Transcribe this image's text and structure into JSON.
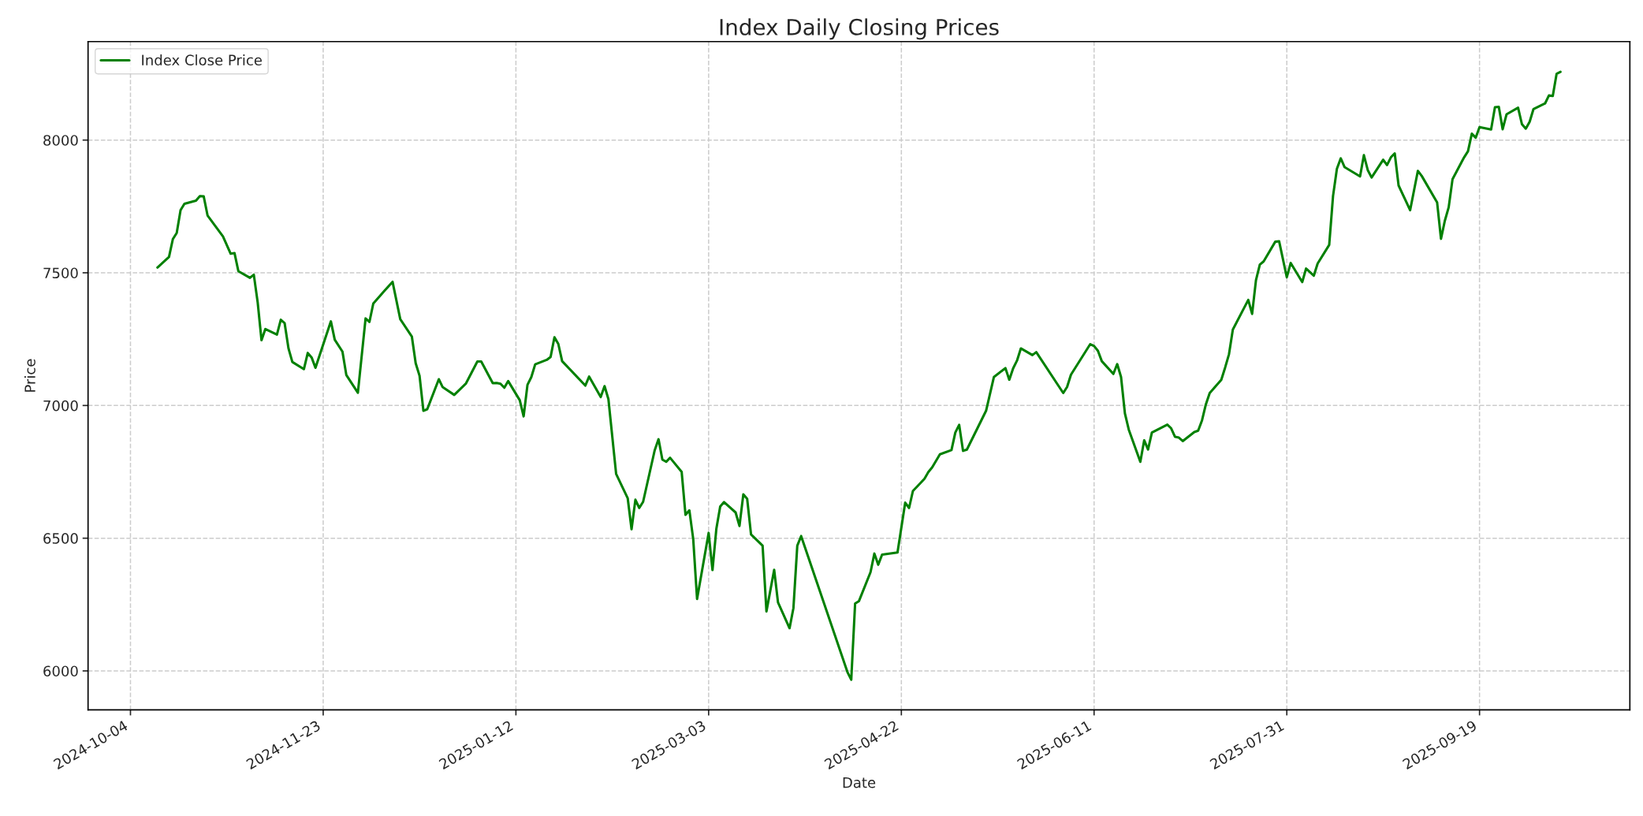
{
  "chart_data": {
    "type": "line",
    "title": "Index Daily Closing Prices",
    "xlabel": "Date",
    "ylabel": "Price",
    "xlim": [
      "2024-09-23",
      "2025-10-28"
    ],
    "ylim": [
      5853,
      8371
    ],
    "xticks": [
      "2024-10-04",
      "2024-11-23",
      "2025-01-12",
      "2025-03-03",
      "2025-04-22",
      "2025-06-11",
      "2025-07-31",
      "2025-09-19"
    ],
    "yticks": [
      6000,
      6500,
      7000,
      7500,
      8000
    ],
    "grid": true,
    "legend": "top left",
    "line_style": "solid",
    "marker": "none",
    "x": [
      "2024-10-11",
      "2024-10-14",
      "2024-10-15",
      "2024-10-16",
      "2024-10-17",
      "2024-10-18",
      "2024-10-21",
      "2024-10-22",
      "2024-10-23",
      "2024-10-24",
      "2024-10-28",
      "2024-10-30",
      "2024-10-31",
      "2024-11-01",
      "2024-11-04",
      "2024-11-05",
      "2024-11-06",
      "2024-11-07",
      "2024-11-08",
      "2024-11-11",
      "2024-11-12",
      "2024-11-13",
      "2024-11-14",
      "2024-11-15",
      "2024-11-18",
      "2024-11-19",
      "2024-11-20",
      "2024-11-21",
      "2024-11-25",
      "2024-11-26",
      "2024-11-28",
      "2024-11-29",
      "2024-12-02",
      "2024-12-04",
      "2024-12-05",
      "2024-12-06",
      "2024-12-09",
      "2024-12-11",
      "2024-12-13",
      "2024-12-16",
      "2024-12-17",
      "2024-12-18",
      "2024-12-19",
      "2024-12-20",
      "2024-12-23",
      "2024-12-24",
      "2024-12-27",
      "2024-12-30",
      "2025-01-02",
      "2025-01-03",
      "2025-01-06",
      "2025-01-07",
      "2025-01-08",
      "2025-01-09",
      "2025-01-10",
      "2025-01-13",
      "2025-01-14",
      "2025-01-15",
      "2025-01-16",
      "2025-01-17",
      "2025-01-20",
      "2025-01-21",
      "2025-01-22",
      "2025-01-23",
      "2025-01-24",
      "2025-01-30",
      "2025-01-31",
      "2025-02-03",
      "2025-02-04",
      "2025-02-05",
      "2025-02-07",
      "2025-02-10",
      "2025-02-11",
      "2025-02-12",
      "2025-02-13",
      "2025-02-14",
      "2025-02-17",
      "2025-02-18",
      "2025-02-19",
      "2025-02-20",
      "2025-02-21",
      "2025-02-24",
      "2025-02-25",
      "2025-02-26",
      "2025-02-27",
      "2025-02-28",
      "2025-03-03",
      "2025-03-04",
      "2025-03-05",
      "2025-03-06",
      "2025-03-07",
      "2025-03-10",
      "2025-03-11",
      "2025-03-12",
      "2025-03-13",
      "2025-03-14",
      "2025-03-17",
      "2025-03-18",
      "2025-03-20",
      "2025-03-21",
      "2025-03-24",
      "2025-03-25",
      "2025-03-26",
      "2025-03-27",
      "2025-04-08",
      "2025-04-09",
      "2025-04-10",
      "2025-04-11",
      "2025-04-14",
      "2025-04-15",
      "2025-04-16",
      "2025-04-17",
      "2025-04-21",
      "2025-04-23",
      "2025-04-24",
      "2025-04-25",
      "2025-04-28",
      "2025-04-29",
      "2025-04-30",
      "2025-05-02",
      "2025-05-05",
      "2025-05-06",
      "2025-05-07",
      "2025-05-08",
      "2025-05-09",
      "2025-05-14",
      "2025-05-16",
      "2025-05-19",
      "2025-05-20",
      "2025-05-21",
      "2025-05-22",
      "2025-05-23",
      "2025-05-26",
      "2025-05-27",
      "2025-06-03",
      "2025-06-04",
      "2025-06-05",
      "2025-06-10",
      "2025-06-11",
      "2025-06-12",
      "2025-06-13",
      "2025-06-16",
      "2025-06-17",
      "2025-06-18",
      "2025-06-19",
      "2025-06-20",
      "2025-06-23",
      "2025-06-24",
      "2025-06-25",
      "2025-06-26",
      "2025-06-30",
      "2025-07-01",
      "2025-07-02",
      "2025-07-03",
      "2025-07-04",
      "2025-07-07",
      "2025-07-08",
      "2025-07-09",
      "2025-07-10",
      "2025-07-11",
      "2025-07-14",
      "2025-07-15",
      "2025-07-16",
      "2025-07-17",
      "2025-07-21",
      "2025-07-22",
      "2025-07-23",
      "2025-07-24",
      "2025-07-25",
      "2025-07-28",
      "2025-07-29",
      "2025-07-31",
      "2025-08-01",
      "2025-08-04",
      "2025-08-05",
      "2025-08-07",
      "2025-08-08",
      "2025-08-11",
      "2025-08-12",
      "2025-08-13",
      "2025-08-14",
      "2025-08-15",
      "2025-08-19",
      "2025-08-20",
      "2025-08-21",
      "2025-08-22",
      "2025-08-25",
      "2025-08-26",
      "2025-08-27",
      "2025-08-28",
      "2025-08-29",
      "2025-09-01",
      "2025-09-03",
      "2025-09-04",
      "2025-09-08",
      "2025-09-09",
      "2025-09-10",
      "2025-09-11",
      "2025-09-12",
      "2025-09-15",
      "2025-09-16",
      "2025-09-17",
      "2025-09-18",
      "2025-09-19",
      "2025-09-22",
      "2025-09-23",
      "2025-09-24",
      "2025-09-25",
      "2025-09-26",
      "2025-09-29",
      "2025-09-30",
      "2025-10-01",
      "2025-10-02",
      "2025-10-03",
      "2025-10-06",
      "2025-10-07",
      "2025-10-08",
      "2025-10-09",
      "2025-10-10"
    ],
    "series": [
      {
        "name": "Index Close Price",
        "color": "#008000",
        "values": [
          7520,
          7560,
          7627,
          7650,
          7736,
          7760,
          7772,
          7789,
          7788,
          7716,
          7637,
          7572,
          7574,
          7506,
          7481,
          7493,
          7389,
          7246,
          7288,
          7267,
          7323,
          7310,
          7215,
          7164,
          7137,
          7198,
          7181,
          7142,
          7317,
          7248,
          7203,
          7115,
          7048,
          7328,
          7315,
          7384,
          7434,
          7466,
          7325,
          7260,
          7159,
          7112,
          6980,
          6986,
          7099,
          7069,
          7040,
          7082,
          7166,
          7166,
          7084,
          7085,
          7082,
          7067,
          7092,
          7020,
          6959,
          7078,
          7107,
          7155,
          7172,
          7183,
          7257,
          7232,
          7167,
          7075,
          7109,
          7032,
          7073,
          7024,
          6742,
          6651,
          6534,
          6645,
          6614,
          6637,
          6831,
          6873,
          6796,
          6788,
          6803,
          6750,
          6588,
          6605,
          6497,
          6271,
          6520,
          6380,
          6535,
          6619,
          6636,
          6597,
          6546,
          6665,
          6648,
          6514,
          6472,
          6224,
          6381,
          6258,
          6161,
          6237,
          6472,
          6508,
          5996,
          5967,
          6254,
          6263,
          6372,
          6442,
          6400,
          6438,
          6446,
          6634,
          6614,
          6678,
          6724,
          6749,
          6767,
          6816,
          6832,
          6898,
          6927,
          6829,
          6834,
          6981,
          7107,
          7141,
          7097,
          7140,
          7169,
          7215,
          7190,
          7201,
          7047,
          7070,
          7116,
          7231,
          7224,
          7206,
          7167,
          7119,
          7156,
          7107,
          6970,
          6909,
          6788,
          6869,
          6834,
          6898,
          6928,
          6914,
          6882,
          6879,
          6866,
          6900,
          6905,
          6944,
          7004,
          7047,
          7097,
          7143,
          7193,
          7286,
          7398,
          7345,
          7472,
          7531,
          7543,
          7617,
          7619,
          7483,
          7537,
          7465,
          7516,
          7489,
          7535,
          7605,
          7790,
          7892,
          7931,
          7898,
          7863,
          7943,
          7887,
          7859,
          7926,
          7906,
          7935,
          7950,
          7829,
          7736,
          7884,
          7865,
          7765,
          7628,
          7696,
          7747,
          7853,
          7935,
          7958,
          8024,
          8009,
          8049,
          8040,
          8124,
          8125,
          8041,
          8097,
          8122,
          8060,
          8043,
          8069,
          8117,
          8138,
          8168,
          8166,
          8250,
          8257
        ]
      }
    ]
  }
}
